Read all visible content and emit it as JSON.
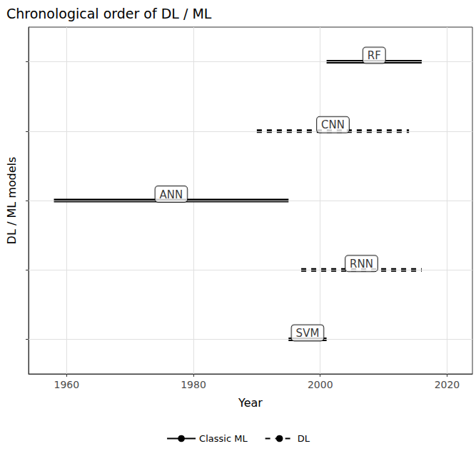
{
  "chart_data": {
    "type": "timeline",
    "title": "Chronological order of DL / ML",
    "x_label": "Year",
    "y_label": "DL / ML models",
    "categories": [
      "SVM",
      "RNN",
      "ANN",
      "CNN",
      "RF"
    ],
    "series": [
      {
        "name": "Classic ML",
        "line_style": "solid",
        "color": "#000000",
        "start": [
          1995,
          null,
          1958,
          null,
          2001
        ],
        "end": [
          2001,
          null,
          1995,
          null,
          2016
        ]
      },
      {
        "name": "DL",
        "line_style": "dashed",
        "color": "#000000",
        "start": [
          null,
          1997,
          null,
          1990,
          null
        ],
        "end": [
          null,
          2016,
          null,
          2014,
          null
        ]
      }
    ],
    "xlim": [
      1954,
      2024
    ],
    "xticks": [
      1960,
      1980,
      2000,
      2020
    ],
    "grid": true,
    "legend": "bottom",
    "tick_labels": "x"
  }
}
